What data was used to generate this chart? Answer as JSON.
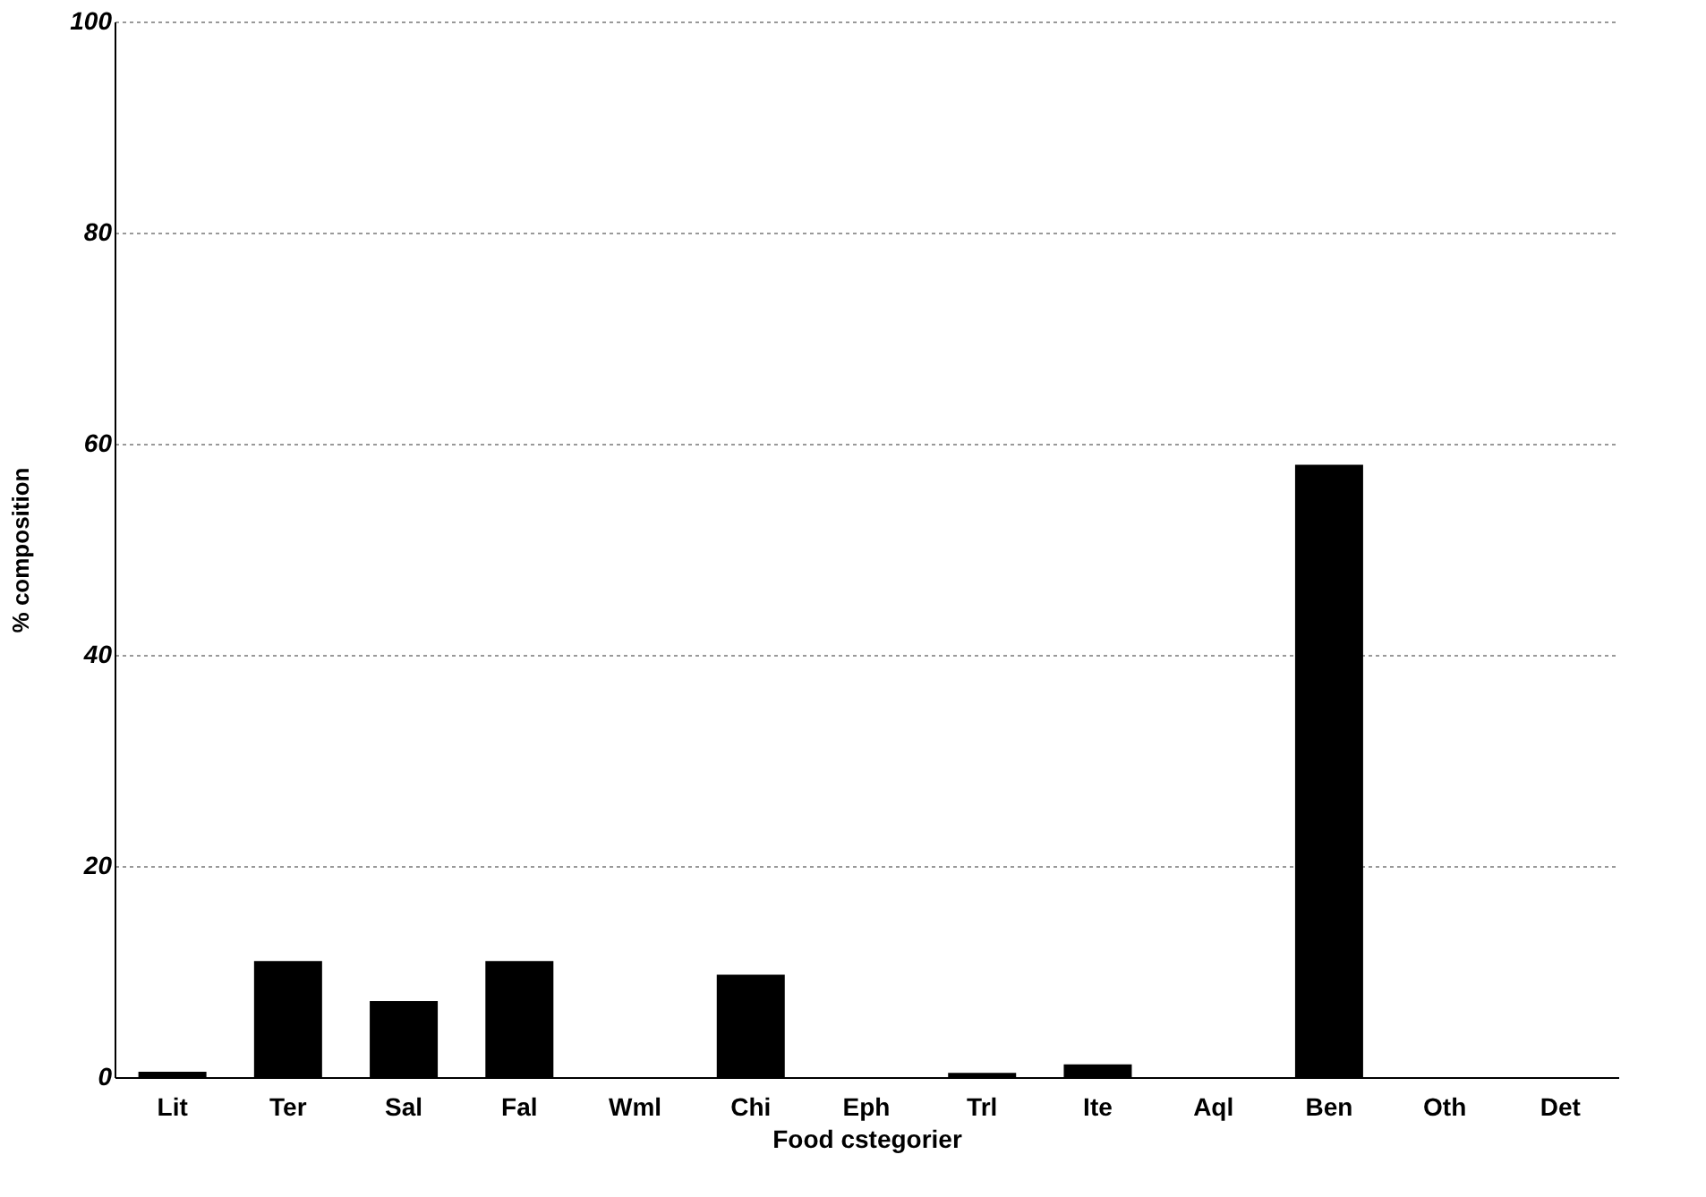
{
  "chart_data": {
    "type": "bar",
    "xlabel": "Food cstegorier",
    "ylabel": "% composition",
    "categories": [
      "Lit",
      "Ter",
      "Sal",
      "Fal",
      "Wml",
      "Chi",
      "Eph",
      "Trl",
      "Ite",
      "Aql",
      "Ben",
      "Oth",
      "Det"
    ],
    "values": [
      0.5,
      11,
      7.2,
      11,
      0,
      9.7,
      0,
      0.4,
      1.2,
      0,
      58,
      0,
      0
    ],
    "color": "#000000",
    "ylim": [
      0,
      100
    ],
    "yticks": [
      0,
      20,
      40,
      60,
      80,
      100
    ],
    "grid": "y"
  }
}
